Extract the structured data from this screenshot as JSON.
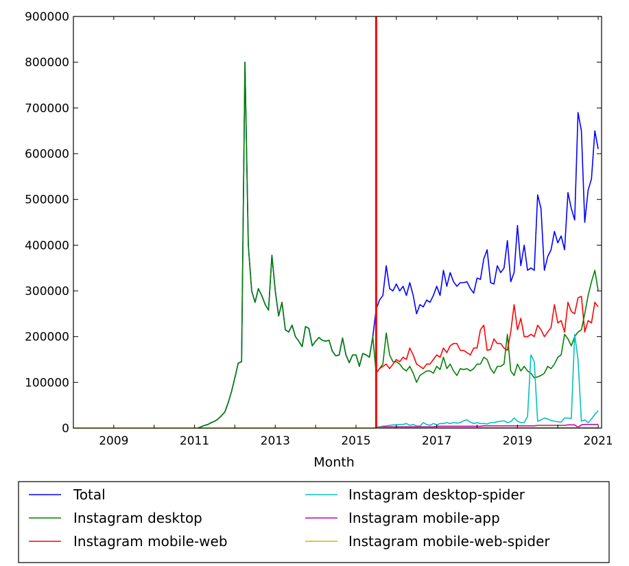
{
  "chart_data": {
    "type": "line",
    "title": "",
    "xlabel": "Month",
    "ylabel": "",
    "xlim": [
      "2008-01",
      "2021-02"
    ],
    "ylim": [
      0,
      900000
    ],
    "x_ticks": [
      "2009",
      "2011",
      "2013",
      "2015",
      "2017",
      "2019",
      "2021"
    ],
    "y_ticks": [
      "0",
      "100000",
      "200000",
      "300000",
      "400000",
      "500000",
      "600000",
      "700000",
      "800000",
      "900000"
    ],
    "grid": false,
    "legend_placement": "below",
    "vertical_marker": {
      "x": "2015-07",
      "color": "#ff0000"
    },
    "x_step": "month",
    "series": [
      {
        "name": "Total",
        "color": "#0000ff",
        "start": "2011-02",
        "values": [
          0,
          3000,
          6000,
          8000,
          12000,
          15000,
          20000,
          27000,
          35000,
          55000,
          80000,
          110000,
          142000,
          145000,
          800000,
          400000,
          300000,
          275000,
          305000,
          290000,
          270000,
          258000,
          378000,
          300000,
          245000,
          275000,
          215000,
          210000,
          225000,
          200000,
          190000,
          178000,
          222000,
          218000,
          180000,
          190000,
          198000,
          192000,
          190000,
          192000,
          168000,
          158000,
          160000,
          197000,
          160000,
          143000,
          160000,
          160000,
          135000,
          163000,
          160000,
          155000,
          200000,
          260000,
          280000,
          290000,
          355000,
          305000,
          300000,
          315000,
          300000,
          310000,
          290000,
          318000,
          290000,
          250000,
          270000,
          265000,
          280000,
          275000,
          290000,
          310000,
          290000,
          345000,
          310000,
          340000,
          320000,
          310000,
          318000,
          318000,
          320000,
          305000,
          295000,
          328000,
          325000,
          370000,
          390000,
          318000,
          315000,
          355000,
          340000,
          350000,
          410000,
          320000,
          340000,
          443000,
          355000,
          400000,
          345000,
          350000,
          345000,
          510000,
          480000,
          345000,
          375000,
          390000,
          430000,
          405000,
          420000,
          390000,
          515000,
          480000,
          455000,
          690000,
          650000,
          450000,
          520000,
          545000,
          650000,
          610000
        ]
      },
      {
        "name": "Instagram desktop",
        "color": "#008000",
        "start": "2011-02",
        "values": [
          0,
          3000,
          6000,
          8000,
          12000,
          15000,
          20000,
          27000,
          35000,
          55000,
          80000,
          110000,
          142000,
          145000,
          800000,
          400000,
          300000,
          275000,
          305000,
          290000,
          270000,
          258000,
          378000,
          300000,
          245000,
          275000,
          215000,
          210000,
          225000,
          200000,
          190000,
          178000,
          222000,
          218000,
          180000,
          190000,
          198000,
          192000,
          190000,
          192000,
          168000,
          158000,
          160000,
          197000,
          160000,
          143000,
          160000,
          160000,
          135000,
          163000,
          160000,
          155000,
          200000,
          120000,
          130000,
          140000,
          208000,
          160000,
          145000,
          145000,
          140000,
          130000,
          125000,
          135000,
          120000,
          100000,
          115000,
          120000,
          125000,
          125000,
          120000,
          135000,
          128000,
          155000,
          130000,
          140000,
          125000,
          115000,
          130000,
          128000,
          130000,
          125000,
          130000,
          140000,
          140000,
          155000,
          150000,
          130000,
          120000,
          135000,
          135000,
          140000,
          205000,
          125000,
          115000,
          140000,
          125000,
          135000,
          125000,
          120000,
          110000,
          112000,
          115000,
          120000,
          135000,
          130000,
          140000,
          155000,
          160000,
          205000,
          195000,
          180000,
          200000,
          210000,
          215000,
          250000,
          290000,
          320000,
          345000,
          300000
        ]
      },
      {
        "name": "Instagram mobile-web",
        "color": "#ff0000",
        "start": "2015-07",
        "values": [
          120000,
          130000,
          135000,
          140000,
          130000,
          140000,
          150000,
          145000,
          155000,
          150000,
          175000,
          160000,
          140000,
          135000,
          130000,
          140000,
          140000,
          150000,
          160000,
          155000,
          175000,
          165000,
          180000,
          185000,
          185000,
          170000,
          170000,
          165000,
          160000,
          175000,
          175000,
          215000,
          225000,
          170000,
          172000,
          195000,
          185000,
          185000,
          175000,
          170000,
          210000,
          270000,
          215000,
          240000,
          200000,
          200000,
          205000,
          200000,
          225000,
          215000,
          200000,
          210000,
          220000,
          270000,
          230000,
          235000,
          210000,
          275000,
          255000,
          250000,
          285000,
          288000,
          210000,
          235000,
          230000,
          275000,
          265000
        ]
      },
      {
        "name": "Instagram desktop-spider",
        "color": "#00bfbf",
        "start": "2015-07",
        "values": [
          2000,
          3000,
          4000,
          5000,
          6000,
          7000,
          7000,
          8000,
          8000,
          10000,
          6000,
          8000,
          5000,
          4000,
          12000,
          8000,
          6000,
          10000,
          7000,
          10000,
          10000,
          12000,
          10000,
          12000,
          11000,
          12000,
          16000,
          18000,
          13000,
          10000,
          12000,
          10000,
          10000,
          9000,
          12000,
          12000,
          14000,
          15000,
          16000,
          12000,
          14000,
          22000,
          15000,
          12000,
          12000,
          25000,
          160000,
          145000,
          15000,
          18000,
          22000,
          20000,
          17000,
          15000,
          14000,
          13000,
          22000,
          22000,
          21000,
          205000,
          150000,
          15000,
          18000,
          12000,
          20000,
          30000,
          38000
        ]
      },
      {
        "name": "Instagram mobile-app",
        "color": "#bf00bf",
        "start": "2015-07",
        "values": [
          2000,
          2000,
          3000,
          3000,
          3000,
          3000,
          3000,
          3000,
          3000,
          3000,
          3000,
          3000,
          3000,
          3000,
          3000,
          3000,
          3000,
          3000,
          4000,
          4000,
          4000,
          4000,
          4000,
          4000,
          4000,
          4000,
          4000,
          4000,
          4000,
          4000,
          4000,
          4000,
          5000,
          5000,
          5000,
          5000,
          5000,
          5000,
          5000,
          5000,
          5000,
          5000,
          5000,
          5000,
          5000,
          5000,
          5000,
          5000,
          6000,
          6000,
          6000,
          6000,
          6000,
          6000,
          6000,
          6000,
          6000,
          7000,
          7000,
          7000,
          2000,
          7000,
          8000,
          8000,
          8000,
          8000,
          8000
        ]
      },
      {
        "name": "Instagram mobile-web-spider",
        "color": "#bfbf00",
        "start": "2008-01",
        "values": [
          0,
          0,
          0,
          0,
          0,
          0,
          0,
          0,
          0,
          0,
          0,
          0,
          0,
          0,
          0,
          0,
          0,
          0,
          0,
          0,
          0,
          0,
          0,
          0,
          0,
          0,
          0,
          0,
          0,
          0,
          0,
          0,
          0,
          0,
          0,
          0,
          0,
          0,
          0,
          0,
          0,
          0,
          0,
          0,
          0,
          0,
          0,
          0,
          0,
          0,
          0,
          0,
          0,
          0,
          0,
          0,
          0,
          0,
          0,
          0,
          0,
          0,
          0,
          0,
          0,
          0,
          0,
          0,
          0,
          0,
          0,
          0,
          0,
          0,
          0,
          0,
          0,
          0,
          0,
          0,
          0,
          0,
          0,
          0,
          0,
          0,
          0,
          0,
          0,
          0,
          1000,
          1000,
          1000,
          1000,
          1000,
          1000,
          1000,
          1000,
          1000,
          1000,
          1000,
          1000,
          1000,
          1000,
          1000,
          1000,
          1000,
          1000,
          1000,
          1000,
          1000,
          1000,
          1000,
          1000,
          1000,
          1000,
          1000,
          1000,
          1000,
          1000,
          1000,
          1000,
          1000,
          1000,
          1000,
          1000,
          1000,
          1000,
          1000,
          1000,
          1000,
          1000,
          1000,
          1000,
          1000,
          1000,
          1000,
          1000,
          1000,
          1000,
          1000,
          1000,
          1000,
          1000,
          1000,
          1000,
          1000,
          1000,
          1000,
          1000,
          1000,
          1000,
          1000,
          1000,
          1000,
          1000,
          1000
        ]
      }
    ]
  }
}
